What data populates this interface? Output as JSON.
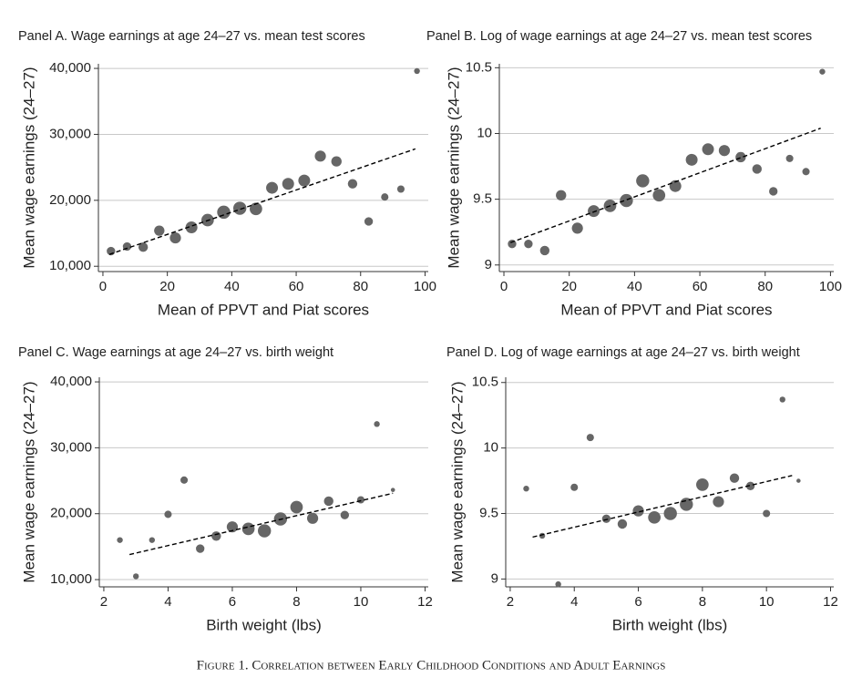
{
  "figure_caption": "Figure 1. Correlation between Early Childhood Conditions and Adult Earnings",
  "chart_data": [
    {
      "type": "scatter",
      "title": "Panel A. Wage earnings at age 24–27 vs. mean test scores",
      "x_label": "Mean of PPVT and Piat scores",
      "y_label": "Mean wage earnings (24–27)",
      "color": "#666666",
      "fit_color": "#000000",
      "grid": true,
      "x": [
        2.5,
        7.5,
        12.5,
        17.5,
        22.5,
        27.5,
        32.5,
        37.5,
        42.5,
        47.5,
        52.5,
        57.5,
        62.5,
        67.5,
        72.5,
        77.5,
        82.5,
        87.5,
        92.5,
        97.5
      ],
      "values": [
        12300,
        13000,
        12900,
        15400,
        14300,
        15900,
        17000,
        18200,
        18800,
        18700,
        21900,
        22500,
        23000,
        26700,
        25900,
        22500,
        16800,
        20500,
        21700,
        39600
      ],
      "sizes": [
        3,
        3,
        4,
        5,
        6,
        7,
        8,
        9,
        9,
        8,
        7,
        7,
        7,
        6,
        5,
        4,
        3,
        2,
        2,
        1
      ],
      "fit_line": {
        "x": [
          2,
          97
        ],
        "values": [
          11800,
          27800
        ]
      },
      "xlim": [
        -1.4,
        101
      ],
      "ylim": [
        9200,
        40700
      ],
      "xticks": [
        0,
        20,
        40,
        60,
        80,
        100
      ],
      "yticks": [
        {
          "value": 10000,
          "label": "10,000"
        },
        {
          "value": 20000,
          "label": "20,000"
        },
        {
          "value": 30000,
          "label": "30,000"
        },
        {
          "value": 40000,
          "label": "40,000"
        }
      ]
    },
    {
      "type": "scatter",
      "title": "Panel B. Log of wage earnings at age 24–27 vs. mean test scores",
      "x_label": "Mean of PPVT and Piat scores",
      "y_label": "Mean wage earnings (24–27)",
      "color": "#666666",
      "fit_color": "#000000",
      "grid": true,
      "x": [
        2.5,
        7.5,
        12.5,
        17.5,
        22.5,
        27.5,
        32.5,
        37.5,
        42.5,
        47.5,
        52.5,
        57.5,
        62.5,
        67.5,
        72.5,
        77.5,
        82.5,
        87.5,
        92.5,
        97.5
      ],
      "values": [
        9.16,
        9.16,
        9.11,
        9.53,
        9.28,
        9.41,
        9.45,
        9.49,
        9.64,
        9.53,
        9.6,
        9.8,
        9.88,
        9.87,
        9.82,
        9.73,
        9.56,
        9.81,
        9.71,
        10.47
      ],
      "sizes": [
        3,
        3,
        4,
        5,
        6,
        7,
        8,
        9,
        9,
        8,
        7,
        7,
        7,
        6,
        5,
        4,
        3,
        2,
        2,
        1
      ],
      "fit_line": {
        "x": [
          2,
          97
        ],
        "values": [
          9.17,
          10.04
        ]
      },
      "xlim": [
        -1.4,
        101
      ],
      "ylim": [
        8.95,
        10.53
      ],
      "xticks": [
        0,
        20,
        40,
        60,
        80,
        100
      ],
      "yticks": [
        9,
        9.5,
        10,
        10.5
      ]
    },
    {
      "type": "scatter",
      "title": "Panel C. Wage earnings at age 24–27 vs. birth weight",
      "x_label": "Birth weight (lbs)",
      "y_label": "Mean wage earnings (24–27)",
      "color": "#666666",
      "fit_color": "#000000",
      "grid": true,
      "x": [
        2.5,
        3,
        3.5,
        4,
        4.5,
        5,
        5.5,
        6,
        6.5,
        7,
        7.5,
        8,
        8.5,
        9,
        9.5,
        10,
        10.5,
        11
      ],
      "values": [
        16000,
        10500,
        16000,
        19900,
        25100,
        14700,
        16600,
        18000,
        17700,
        17400,
        19200,
        21000,
        19300,
        21900,
        19800,
        22100,
        33600,
        23600
      ],
      "sizes": [
        1,
        1,
        1,
        2,
        2,
        3,
        4,
        6,
        8,
        9,
        9,
        8,
        6,
        4,
        3,
        2,
        1,
        0.3
      ],
      "fit_line": {
        "x": [
          2.8,
          11
        ],
        "values": [
          13800,
          23100
        ]
      },
      "xlim": [
        1.86,
        12.1
      ],
      "ylim": [
        8900,
        40700
      ],
      "xticks": [
        2,
        4,
        6,
        8,
        10,
        12
      ],
      "yticks": [
        {
          "value": 10000,
          "label": "10,000"
        },
        {
          "value": 20000,
          "label": "20,000"
        },
        {
          "value": 30000,
          "label": "30,000"
        },
        {
          "value": 40000,
          "label": "40,000"
        }
      ]
    },
    {
      "type": "scatter",
      "title": "Panel D. Log of wage earnings at age 24–27 vs. birth weight",
      "x_label": "Birth weight (lbs)",
      "y_label": "Mean wage earnings (24–27)",
      "color": "#666666",
      "fit_color": "#000000",
      "grid": true,
      "x": [
        2.5,
        3,
        3.5,
        4,
        4.5,
        5,
        5.5,
        6,
        6.5,
        7,
        7.5,
        8,
        8.5,
        9,
        9.5,
        10,
        10.5,
        11
      ],
      "values": [
        9.69,
        9.33,
        8.96,
        9.7,
        10.08,
        9.46,
        9.42,
        9.52,
        9.47,
        9.5,
        9.57,
        9.72,
        9.59,
        9.77,
        9.71,
        9.5,
        10.37,
        9.75
      ],
      "sizes": [
        1,
        1,
        1,
        2,
        2,
        3,
        4,
        6,
        8,
        9,
        9,
        8,
        6,
        4,
        3,
        2,
        1,
        0.3
      ],
      "fit_line": {
        "x": [
          2.7,
          10.8
        ],
        "values": [
          9.32,
          9.79
        ]
      },
      "xlim": [
        1.86,
        12.1
      ],
      "ylim": [
        8.94,
        10.54
      ],
      "xticks": [
        2,
        4,
        6,
        8,
        10,
        12
      ],
      "yticks": [
        9,
        9.5,
        10,
        10.5
      ]
    }
  ]
}
